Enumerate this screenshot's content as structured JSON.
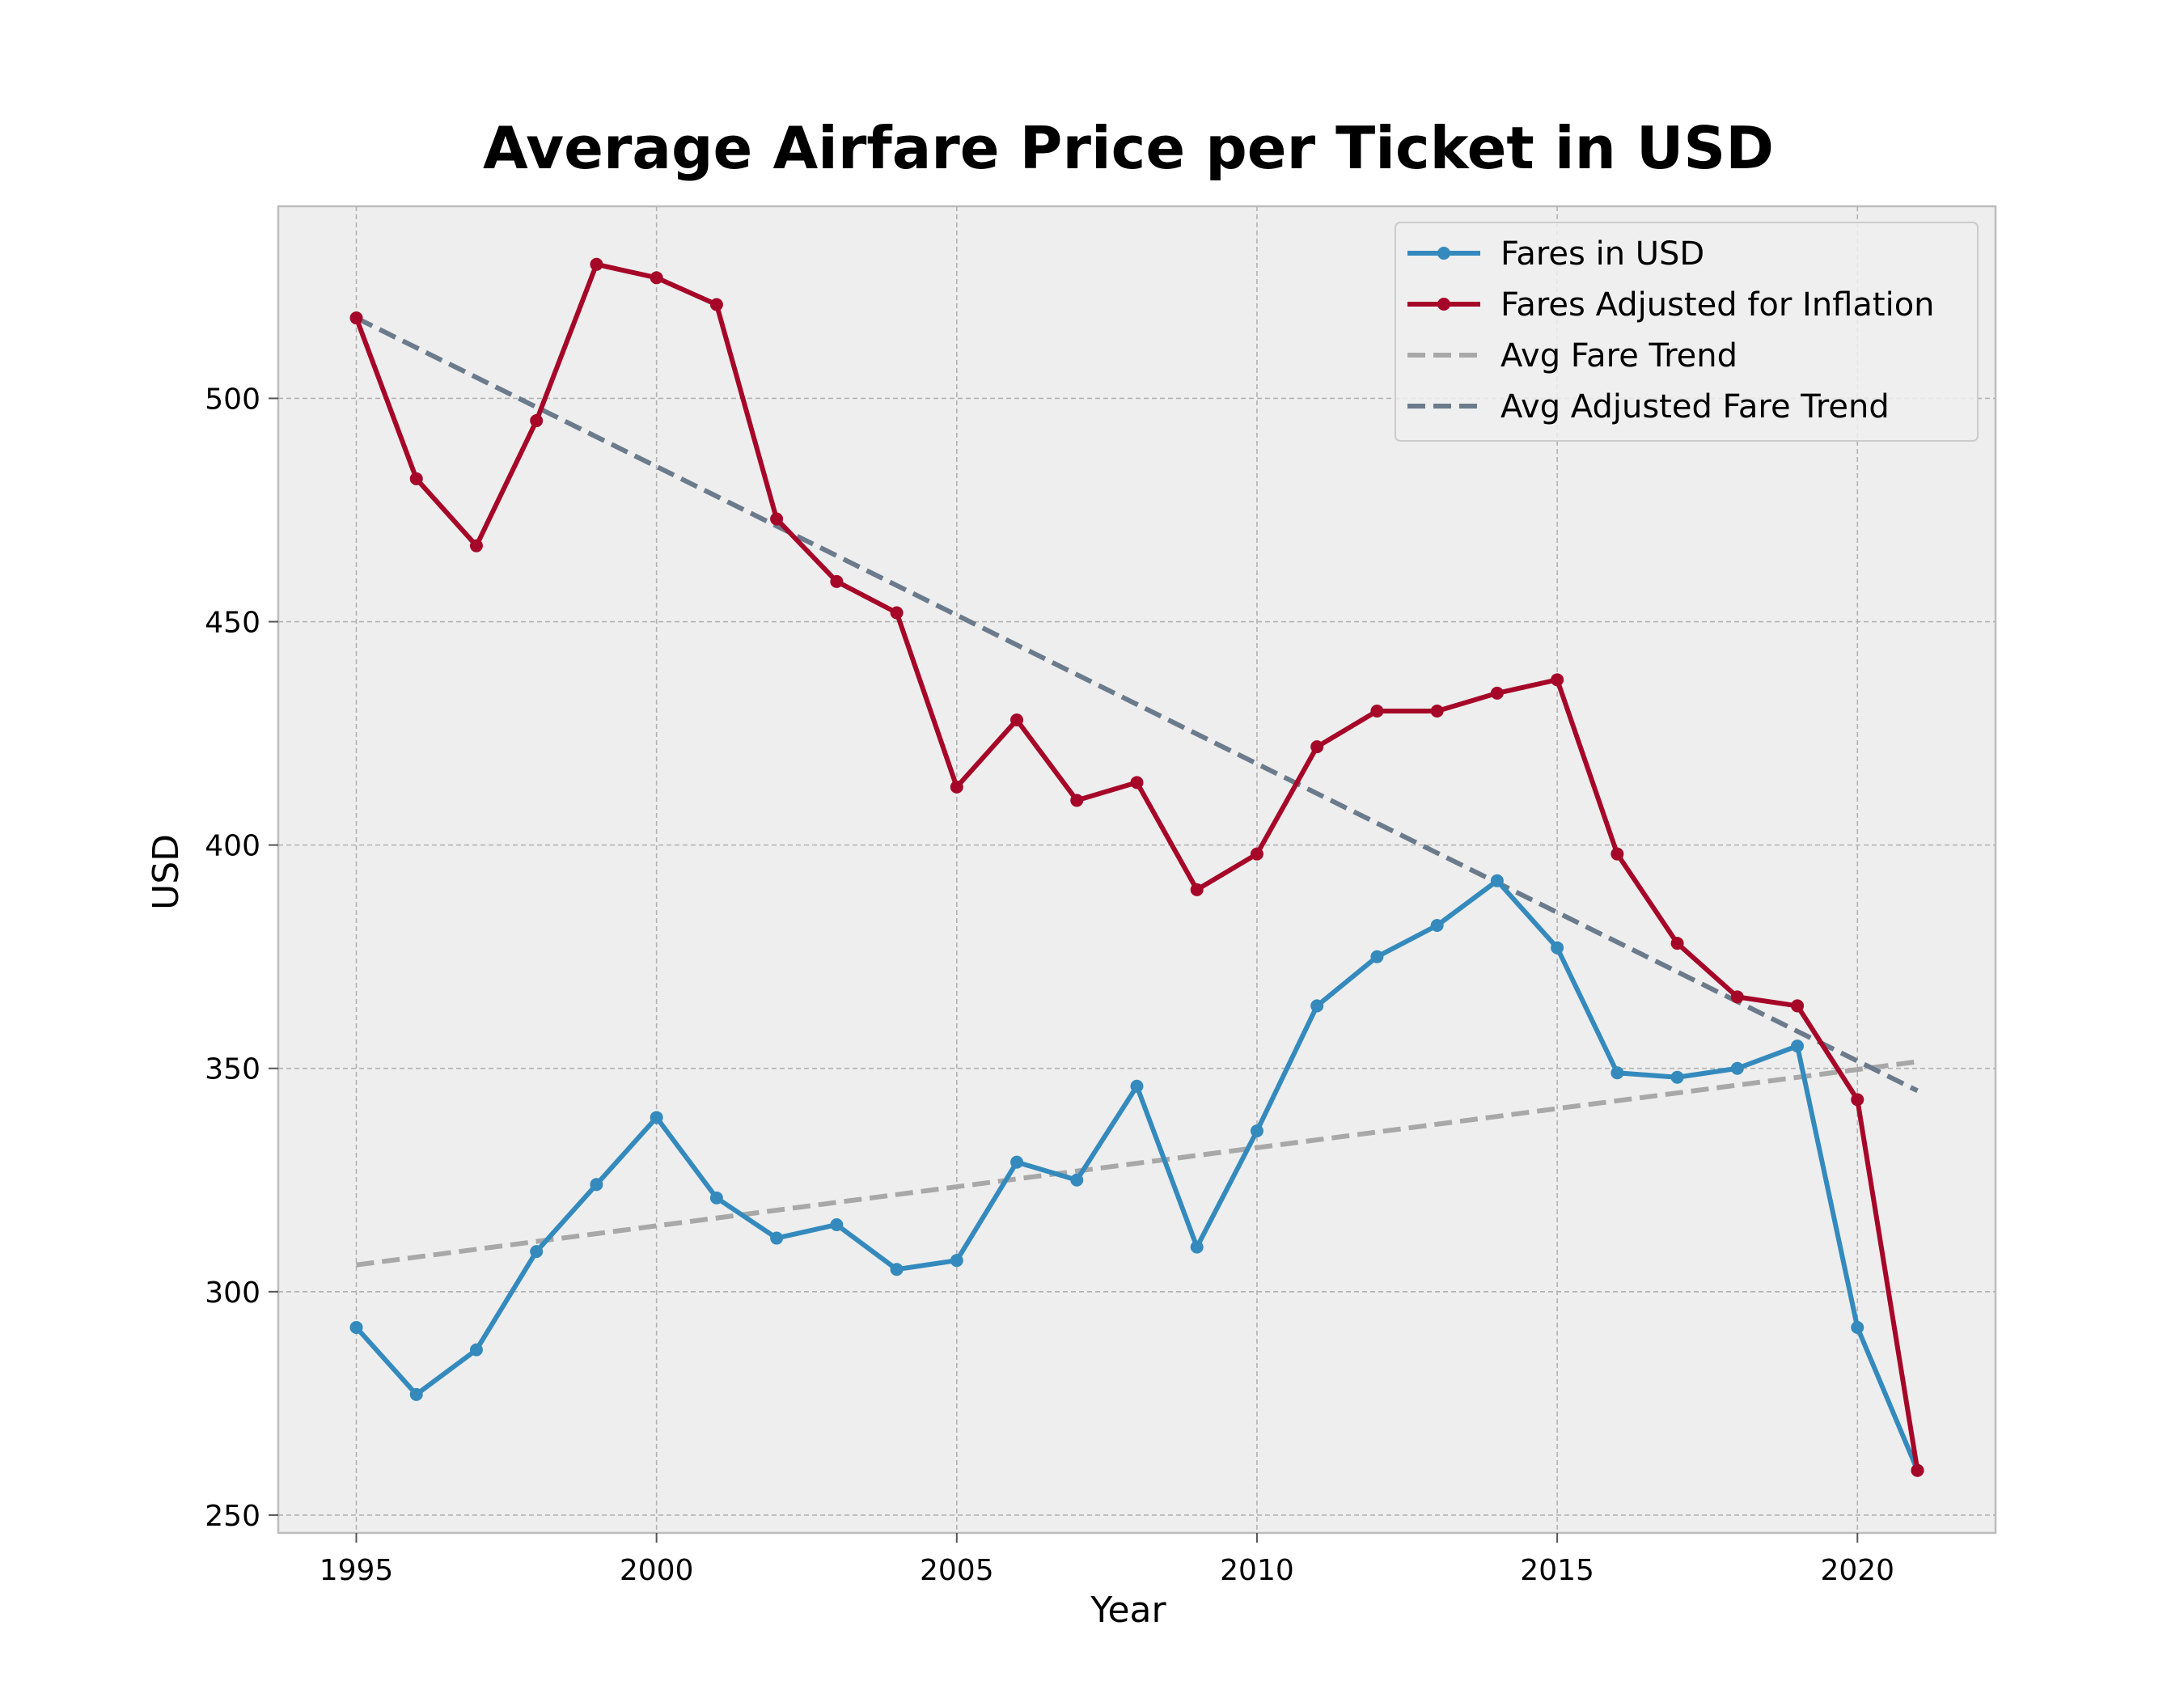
{
  "chart_data": {
    "type": "line",
    "title": "Average Airfare Price per Ticket in USD",
    "xlabel": "Year",
    "ylabel": "USD",
    "xlim": [
      1993.7,
      2022.3
    ],
    "ylim": [
      246,
      543
    ],
    "xticks": [
      1995,
      2000,
      2005,
      2010,
      2015,
      2020
    ],
    "yticks": [
      250,
      300,
      350,
      400,
      450,
      500
    ],
    "grid": true,
    "legend_position": "top-right",
    "x": [
      1995,
      1996,
      1997,
      1998,
      1999,
      2000,
      2001,
      2002,
      2003,
      2004,
      2005,
      2006,
      2007,
      2008,
      2009,
      2010,
      2011,
      2012,
      2013,
      2014,
      2015,
      2016,
      2017,
      2018,
      2019,
      2020,
      2021
    ],
    "series": [
      {
        "name": "Fares in USD",
        "color": "#348abd",
        "style": "solid-markers",
        "values": [
          292,
          277,
          287,
          309,
          324,
          339,
          321,
          312,
          315,
          305,
          307,
          329,
          325,
          346,
          310,
          336,
          364,
          375,
          382,
          392,
          377,
          349,
          348,
          350,
          355,
          292,
          260
        ]
      },
      {
        "name": "Fares Adjusted for Inflation",
        "color": "#a60628",
        "style": "solid-markers",
        "values": [
          518,
          482,
          467,
          495,
          530,
          527,
          521,
          473,
          459,
          452,
          413,
          428,
          410,
          414,
          390,
          398,
          422,
          430,
          430,
          434,
          437,
          398,
          378,
          366,
          364,
          343,
          260
        ]
      }
    ],
    "trends": [
      {
        "name": "Avg Fare Trend",
        "color": "#a8a8a8",
        "style": "dashed",
        "x": [
          1995,
          2021
        ],
        "y": [
          306,
          351.5
        ]
      },
      {
        "name": "Avg Adjusted Fare Trend",
        "color": "#6b7b8c",
        "style": "dashed",
        "x": [
          1995,
          2021
        ],
        "y": [
          518,
          345
        ]
      }
    ]
  }
}
